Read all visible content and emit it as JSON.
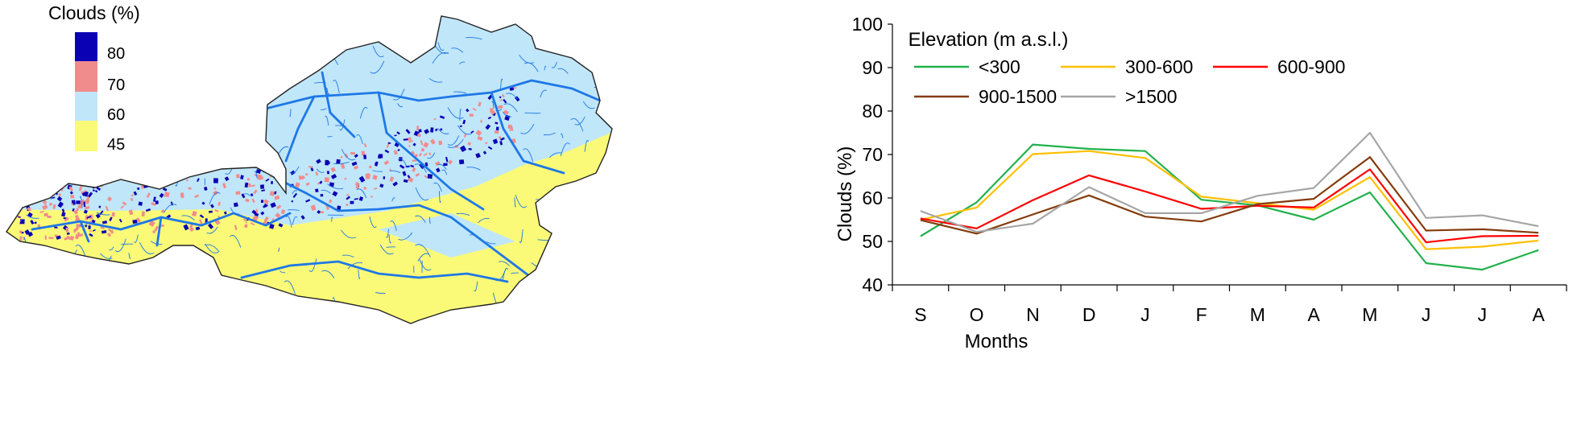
{
  "map": {
    "legend_title": "Clouds (%)",
    "legend": [
      {
        "label": "80",
        "color": "#0a00b4"
      },
      {
        "label": "70",
        "color": "#f08c8c"
      },
      {
        "label": "60",
        "color": "#c0e6fa"
      },
      {
        "label": "45",
        "color": "#fafa78"
      }
    ],
    "colors": {
      "river": "#1e78e6",
      "border": "#222222"
    }
  },
  "chart_data": {
    "type": "line",
    "categories": [
      "S",
      "O",
      "N",
      "D",
      "J",
      "F",
      "M",
      "A",
      "M",
      "J",
      "J",
      "A"
    ],
    "xlabel": "Months",
    "ylabel": "Clouds (%)",
    "ylim": [
      40,
      100
    ],
    "yticks": [
      40,
      50,
      60,
      70,
      80,
      90,
      100
    ],
    "legend_title": "Elevation (m a.s.l.)",
    "legend_position": "top",
    "grid": false,
    "series": [
      {
        "name": "<300",
        "color": "#22b14c",
        "values": [
          51.2,
          59,
          72.3,
          71.3,
          70.8,
          59.6,
          58.3,
          55,
          61.3,
          45,
          43.5,
          48
        ]
      },
      {
        "name": "300-600",
        "color": "#ffc000",
        "values": [
          55,
          57.8,
          70.1,
          70.8,
          69.2,
          60.3,
          58.8,
          57.3,
          64.8,
          48.2,
          48.8,
          50.2
        ]
      },
      {
        "name": "600-900",
        "color": "#ff0000",
        "values": [
          55.3,
          53,
          59.5,
          65.2,
          61.5,
          57.5,
          58.2,
          57.8,
          66.6,
          49.8,
          51.2,
          51.3
        ]
      },
      {
        "name": "900-1500",
        "color": "#843c0c",
        "values": [
          54.9,
          51.8,
          56.2,
          60.6,
          55.7,
          54.6,
          58.6,
          59.8,
          69.4,
          52.5,
          52.8,
          52
        ]
      },
      {
        "name": ">1500",
        "color": "#a6a6a6",
        "values": [
          57,
          52.2,
          54.1,
          62.5,
          56.5,
          56.5,
          60.5,
          62.3,
          75,
          55.4,
          56,
          53.5
        ]
      }
    ]
  }
}
